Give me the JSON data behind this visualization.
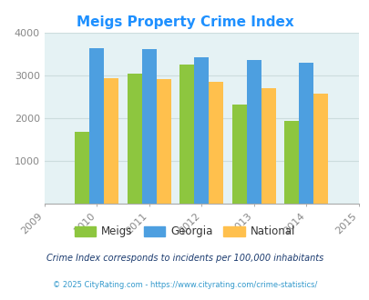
{
  "title": "Meigs Property Crime Index",
  "years": [
    2010,
    2011,
    2012,
    2013,
    2014
  ],
  "meigs": [
    1680,
    3060,
    3260,
    2330,
    1950
  ],
  "georgia": [
    3650,
    3620,
    3440,
    3360,
    3310
  ],
  "national": [
    2950,
    2920,
    2860,
    2710,
    2580
  ],
  "bar_width": 0.28,
  "color_meigs": "#8DC63F",
  "color_georgia": "#4D9FE0",
  "color_national": "#FFC04D",
  "bg_color": "#E5F2F4",
  "ylim": [
    0,
    4000
  ],
  "yticks": [
    0,
    1000,
    2000,
    3000,
    4000
  ],
  "xlim": [
    2009,
    2015
  ],
  "xticks": [
    2009,
    2010,
    2011,
    2012,
    2013,
    2014,
    2015
  ],
  "title_color": "#1E90FF",
  "title_fontsize": 11,
  "legend_labels": [
    "Meigs",
    "Georgia",
    "National"
  ],
  "footnote1": "Crime Index corresponds to incidents per 100,000 inhabitants",
  "footnote2": "© 2025 CityRating.com - https://www.cityrating.com/crime-statistics/",
  "footnote1_color": "#1A3A6E",
  "footnote2_color": "#3399CC",
  "tick_label_color": "#888888",
  "grid_color": "#CCDDDD",
  "axis_label_fontsize": 8
}
